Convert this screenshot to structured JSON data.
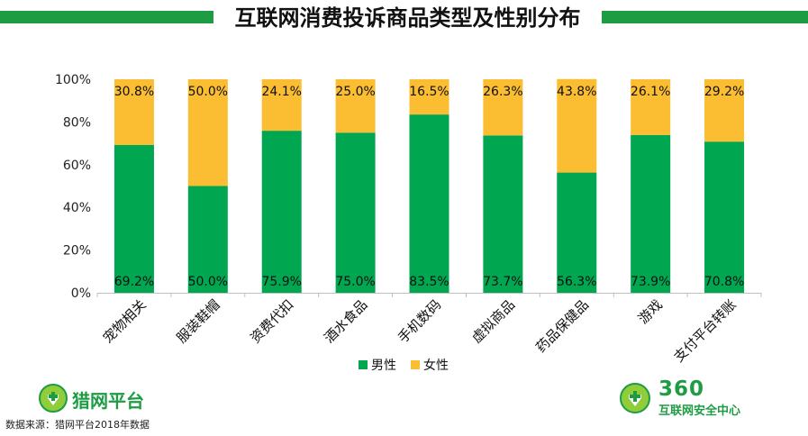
{
  "title": "互联网消费投诉商品类型及性别分布",
  "chart_data": {
    "type": "bar",
    "stacked": "percent",
    "categories": [
      "宠物相关",
      "服装鞋帽",
      "资费代扣",
      "酒水食品",
      "手机数码",
      "虚拟商品",
      "药品保健品",
      "游戏",
      "支付平台转账"
    ],
    "series": [
      {
        "name": "男性",
        "color": "#00a650",
        "values": [
          69.2,
          50.0,
          75.9,
          75.0,
          83.5,
          73.7,
          56.3,
          73.9,
          70.8
        ],
        "labels": [
          "69.2%",
          "50.0%",
          "75.9%",
          "75.0%",
          "83.5%",
          "73.7%",
          "56.3%",
          "73.9%",
          "70.8%"
        ]
      },
      {
        "name": "女性",
        "color": "#fbbd31",
        "values": [
          30.8,
          50.0,
          24.1,
          25.0,
          16.5,
          26.3,
          43.8,
          26.1,
          29.2
        ],
        "labels": [
          "30.8%",
          "50.0%",
          "24.1%",
          "25.0%",
          "16.5%",
          "26.3%",
          "43.8%",
          "26.1%",
          "29.2%"
        ]
      }
    ],
    "ylim": [
      0,
      100
    ],
    "yticks": [
      "0%",
      "20%",
      "40%",
      "60%",
      "80%",
      "100%"
    ],
    "grid": false,
    "legend": "bottom"
  },
  "footer": {
    "left_logo": "猎网平台",
    "right_logo_number": "360",
    "right_logo_text": "互联网安全中心",
    "source": "数据来源：猎网平台2018年数据"
  },
  "colors": {
    "brand_green": "#1e9c43",
    "male": "#00a650",
    "female": "#fbbd31"
  }
}
